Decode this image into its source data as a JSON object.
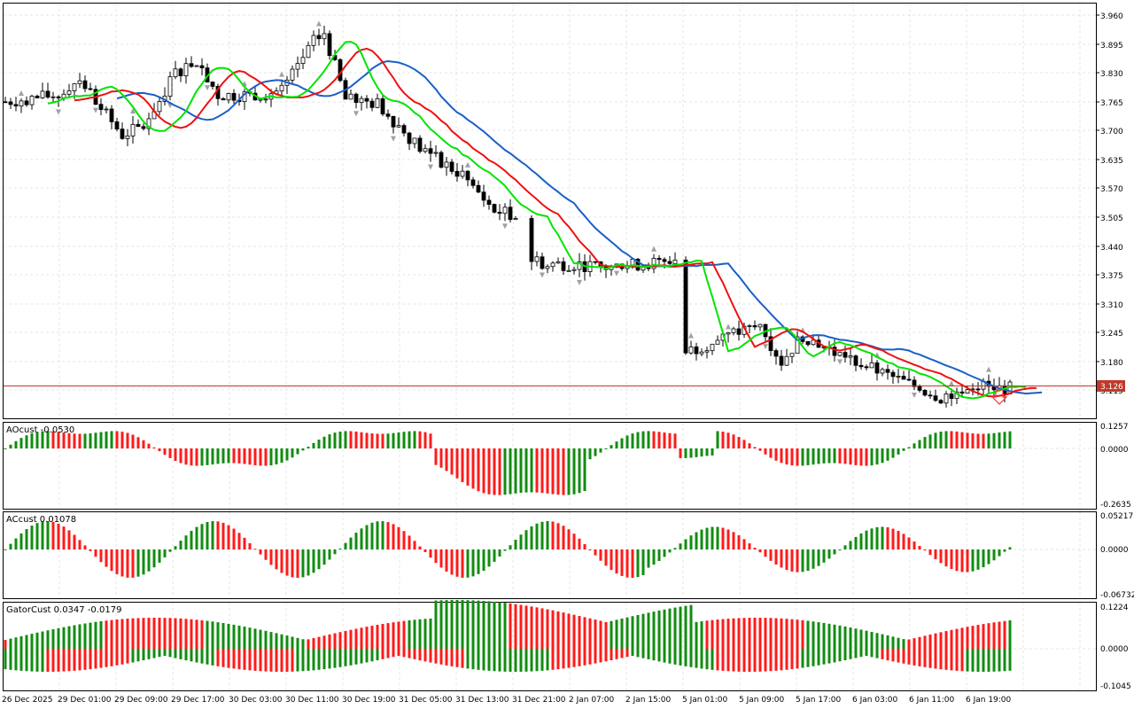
{
  "colors": {
    "background": "#ffffff",
    "grid": "#e6e6e6",
    "frame": "#000000",
    "candle_up": "#ffffff",
    "candle_down": "#000000",
    "fractal": "#a0a0a0",
    "lips": "#00e400",
    "teeth": "#ee1111",
    "jaw": "#1a5fc8",
    "price_line": "#c0392b",
    "hist_green": "#118c11",
    "hist_red": "#ff1a1a"
  },
  "price_axis": {
    "labels": [
      "3.960",
      "3.895",
      "3.830",
      "3.765",
      "3.700",
      "3.635",
      "3.570",
      "3.505",
      "3.440",
      "3.375",
      "3.310",
      "3.245",
      "3.180",
      "3.115"
    ],
    "current_price": "3.126"
  },
  "time_axis": {
    "labels": [
      "26 Dec 2025",
      "29 Dec 01:00",
      "29 Dec 09:00",
      "29 Dec 17:00",
      "30 Dec 03:00",
      "30 Dec 11:00",
      "30 Dec 19:00",
      "31 Dec 05:00",
      "31 Dec 13:00",
      "31 Dec 21:00",
      "2 Jan 07:00",
      "2 Jan 15:00",
      "5 Jan 01:00",
      "5 Jan 09:00",
      "5 Jan 17:00",
      "6 Jan 03:00",
      "6 Jan 11:00",
      "6 Jan 19:00"
    ]
  },
  "panels": {
    "ao": {
      "label": "AOcust -0.0530",
      "axis_labels": [
        "0.1257",
        "0.0000",
        "-0.2635"
      ]
    },
    "ac": {
      "label": "ACcust 0.01078",
      "axis_labels": [
        "0.05217",
        "0.0000",
        "-0.06732"
      ]
    },
    "gator": {
      "label": "GatorCust 0.0347 -0.0179",
      "axis_labels": [
        "0.1224",
        "0.0000",
        "-0.1045"
      ]
    }
  }
}
